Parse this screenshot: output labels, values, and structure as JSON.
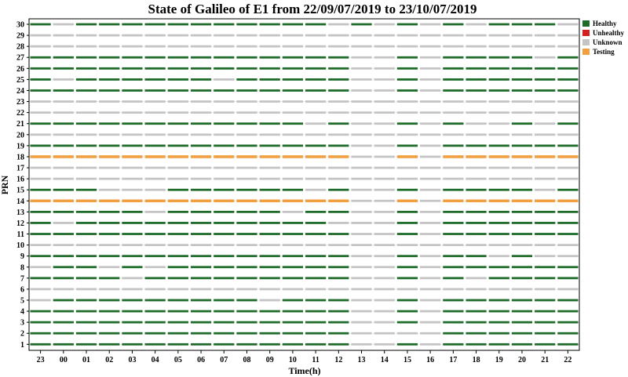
{
  "chart_data": {
    "type": "timeline",
    "title": "State of Galileo of E1 from 22/09/07/2019 to 23/10/07/2019",
    "xlabel": "Time(h)",
    "ylabel": "PRN",
    "x_ticks": [
      "23",
      "00",
      "01",
      "02",
      "03",
      "04",
      "05",
      "06",
      "07",
      "08",
      "09",
      "10",
      "11",
      "12",
      "13",
      "14",
      "15",
      "16",
      "17",
      "18",
      "19",
      "20",
      "21",
      "22"
    ],
    "y_ticks": [
      1,
      2,
      3,
      4,
      5,
      6,
      7,
      8,
      9,
      10,
      11,
      12,
      13,
      14,
      15,
      16,
      17,
      18,
      19,
      20,
      21,
      22,
      23,
      24,
      25,
      26,
      27,
      28,
      29,
      30
    ],
    "legend": {
      "placement": "top-right",
      "entries": [
        {
          "key": "H",
          "label": "Healthy",
          "color": "#1e6b2a"
        },
        {
          "key": "X",
          "label": "Unhealthy",
          "color": "#d42020"
        },
        {
          "key": "U",
          "label": "Unknown",
          "color": "#c4c4c4"
        },
        {
          "key": "T",
          "label": "Testing",
          "color": "#f0a040"
        }
      ]
    },
    "state_encoding": "One character per one-hour slot starting at 23:00; H=Healthy, U=Unknown, T=Testing, X=Unhealthy",
    "rows": [
      {
        "prn": 1,
        "states": "HHHHHHHHHHHHHHUUHUHHHHHH"
      },
      {
        "prn": 2,
        "states": "HHHHHHHHHHHHHHUUUUHHHHHH"
      },
      {
        "prn": 3,
        "states": "HHHHHHHHHHHHHHUUHUHHHHHH"
      },
      {
        "prn": 4,
        "states": "HHHHHHHHHHHHHHUUHUHHHHHH"
      },
      {
        "prn": 5,
        "states": "UHHHHHHHHHUHHHUUHUHHHHHH"
      },
      {
        "prn": 6,
        "states": "UUUUUUUUUUUUUUUUUUUUUUUU"
      },
      {
        "prn": 7,
        "states": "HHHHUHHHHHHHHHUUHUHUHHHH"
      },
      {
        "prn": 8,
        "states": "UHHUHUHHHHHHHHUUHUHHHHHH"
      },
      {
        "prn": 9,
        "states": "HHHHHHHHHHHHHHUUHUHHUHUU"
      },
      {
        "prn": 10,
        "states": "UUUUUUUUUUUUUUUUUUUUUUUU"
      },
      {
        "prn": 11,
        "states": "HHHHHHHHHHHHHHUUHUHHHHHH"
      },
      {
        "prn": 12,
        "states": "HUHHHHHHHHHHHUUUHUHHHHHH"
      },
      {
        "prn": 13,
        "states": "HHHHHUHHHHHUHHUUHUHHHHHH"
      },
      {
        "prn": 14,
        "states": "TTTTTTTTTTTTTTUUTUTTTTTT"
      },
      {
        "prn": 15,
        "states": "HHHUUUHHHHHHUHUUHUHHHHUH"
      },
      {
        "prn": 16,
        "states": "UUUUUUUUUUUUUUUUUUUUUUUU"
      },
      {
        "prn": 17,
        "states": "UUUUUUUUUUUUUUUUUUUUUUUU"
      },
      {
        "prn": 18,
        "states": "TTTTTTTTTTTTTTUUTUTTTTTT"
      },
      {
        "prn": 19,
        "states": "HHHHHHHHHHHHHHUUHUHHHHHH"
      },
      {
        "prn": 20,
        "states": "UUUUUUUUUUUUUUUUUUUUUUUU"
      },
      {
        "prn": 21,
        "states": "HHHHHHHHHHHHUHUUHUHUUHUH"
      },
      {
        "prn": 22,
        "states": "UUUUUUUUUUUUUUUUUUUUUUUU"
      },
      {
        "prn": 23,
        "states": "UUUUUUUUUUUUUUUUUUUUUUUU"
      },
      {
        "prn": 24,
        "states": "HHHHHHHHHHHHHHUUHUHHHHHH"
      },
      {
        "prn": 25,
        "states": "HUHHHHHHUHHHHHUUHUHHHHHH"
      },
      {
        "prn": 26,
        "states": "HHHHHHHHHHHHHHUUHUHHHHHH"
      },
      {
        "prn": 27,
        "states": "HHHHHHHHHHHHHHUUHUHHHHUH"
      },
      {
        "prn": 28,
        "states": "UUUUUUUUUUUUUUUUUUUUUUUU"
      },
      {
        "prn": 29,
        "states": "UUUUUUUUUUUUUUUUUUUUUUUU"
      },
      {
        "prn": 30,
        "states": "HUHHHHHHHHHHHUHUHUHUHHHU"
      }
    ]
  }
}
